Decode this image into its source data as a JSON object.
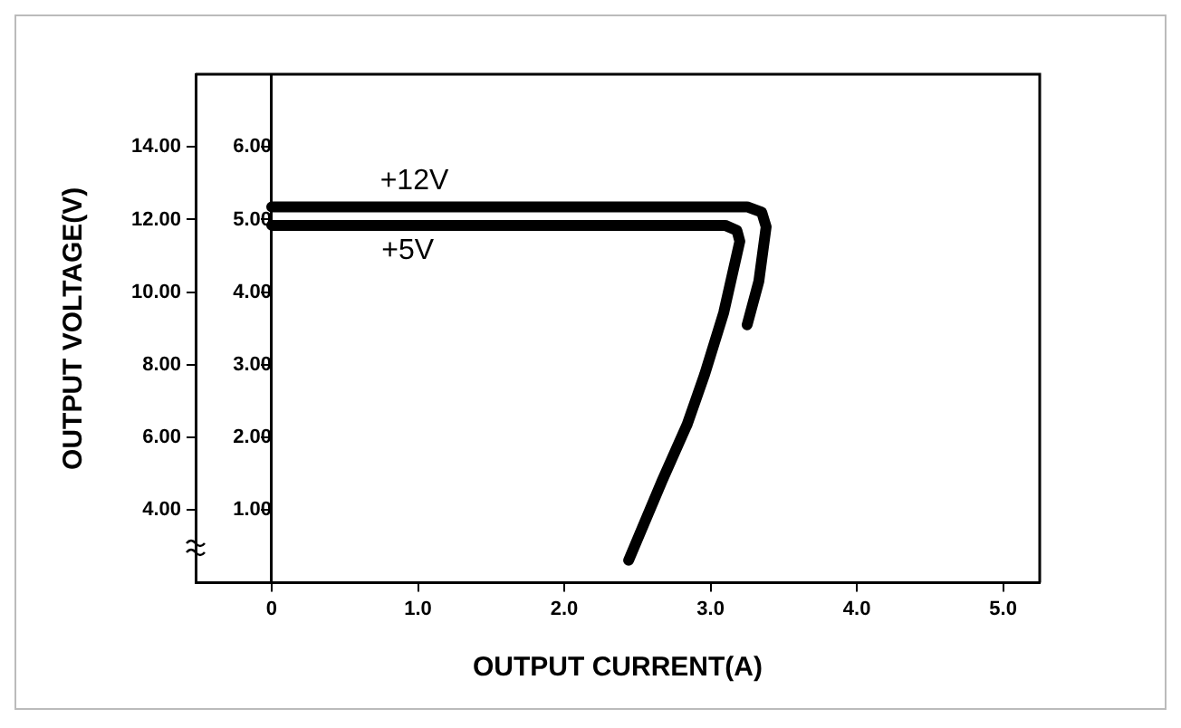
{
  "chart_data": {
    "type": "line",
    "xlabel": "OUTPUT CURRENT(A)",
    "ylabel": "OUTPUT VOLTAGE(V)",
    "xlim": [
      -0.52,
      5.25
    ],
    "xticks": [
      0,
      {
        "value": 1,
        "label": "1.0"
      },
      {
        "value": 2,
        "label": "2.0"
      },
      {
        "value": 3,
        "label": "3.0"
      },
      {
        "value": 4,
        "label": "4.0"
      },
      {
        "value": 5,
        "label": "5.0"
      }
    ],
    "ylim": [
      2,
      16
    ],
    "yticks": [
      {
        "value": 4,
        "label": "4.00"
      },
      {
        "value": 6,
        "label": "6.00"
      },
      {
        "value": 8,
        "label": "8.00"
      },
      {
        "value": 10,
        "label": "10.00"
      },
      {
        "value": 12,
        "label": "12.00"
      },
      {
        "value": 14,
        "label": "14.00"
      }
    ],
    "y2lim": [
      0,
      7
    ],
    "y2ticks": [
      {
        "value": 1,
        "label": "1.00"
      },
      {
        "value": 2,
        "label": "2.00"
      },
      {
        "value": 3,
        "label": "3.00"
      },
      {
        "value": 4,
        "label": "4.00"
      },
      {
        "value": 5,
        "label": "5.00"
      },
      {
        "value": 6,
        "label": "6.00"
      }
    ],
    "grid": false,
    "legend": false,
    "marker": "none",
    "line_style": "solid",
    "series": [
      {
        "name": "+12V",
        "color": "#000000",
        "x": [
          0,
          3.25,
          3.35,
          3.38,
          3.33,
          3.25
        ],
        "values": [
          12.35,
          12.35,
          12.2,
          11.8,
          10.3,
          9.1
        ]
      },
      {
        "name": "+5V",
        "color": "#000000",
        "axis": "y2",
        "x": [
          0,
          3.1,
          3.18,
          3.2,
          3.09,
          2.96,
          2.84,
          2.67,
          2.44
        ],
        "values": [
          4.92,
          4.92,
          4.85,
          4.7,
          3.72,
          2.87,
          2.18,
          1.41,
          0.31
        ]
      }
    ]
  }
}
